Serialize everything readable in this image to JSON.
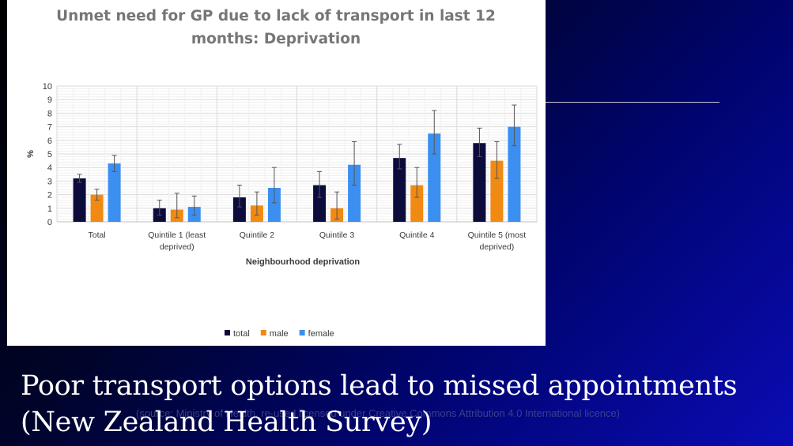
{
  "slide": {
    "title": "Poor transport options lead to missed appointments (New Zealand Health Survey)",
    "source_note": "(source: Ministry of Health, re-used licensed under Creative Commons Attribution 4.0 International licence)"
  },
  "colors": {
    "total": "#0b0c3c",
    "male": "#f08a12",
    "female": "#3b8ff0"
  },
  "chart_data": {
    "type": "bar",
    "title_lines": [
      "Unmet need for GP due to lack of transport in last 12",
      "months: Deprivation"
    ],
    "xlabel": "Neighbourhood deprivation",
    "ylabel": "%",
    "ylim": [
      0,
      10
    ],
    "yticks": [
      0,
      1,
      2,
      3,
      4,
      5,
      6,
      7,
      8,
      9,
      10
    ],
    "grid": true,
    "legend_position": "bottom",
    "categories": [
      [
        "Total"
      ],
      [
        "Quintile 1 (least",
        "deprived)"
      ],
      [
        "Quintile 2"
      ],
      [
        "Quintile 3"
      ],
      [
        "Quintile 4"
      ],
      [
        "Quintile 5 (most",
        "deprived)"
      ]
    ],
    "series": [
      {
        "name": "total",
        "values": [
          3.2,
          1.0,
          1.8,
          2.7,
          4.7,
          5.8
        ],
        "err_low": [
          2.9,
          0.5,
          1.1,
          1.8,
          3.9,
          4.8
        ],
        "err_high": [
          3.5,
          1.6,
          2.7,
          3.7,
          5.7,
          6.9
        ]
      },
      {
        "name": "male",
        "values": [
          2.0,
          0.9,
          1.2,
          1.0,
          2.7,
          4.5
        ],
        "err_low": [
          1.6,
          0.3,
          0.5,
          0.2,
          1.8,
          3.2
        ],
        "err_high": [
          2.4,
          2.1,
          2.2,
          2.2,
          4.0,
          5.9
        ]
      },
      {
        "name": "female",
        "values": [
          4.3,
          1.1,
          2.5,
          4.2,
          6.5,
          7.0
        ],
        "err_low": [
          3.7,
          0.5,
          1.4,
          2.7,
          5.0,
          5.6
        ],
        "err_high": [
          4.9,
          1.9,
          4.0,
          5.9,
          8.2,
          8.6
        ]
      }
    ]
  }
}
